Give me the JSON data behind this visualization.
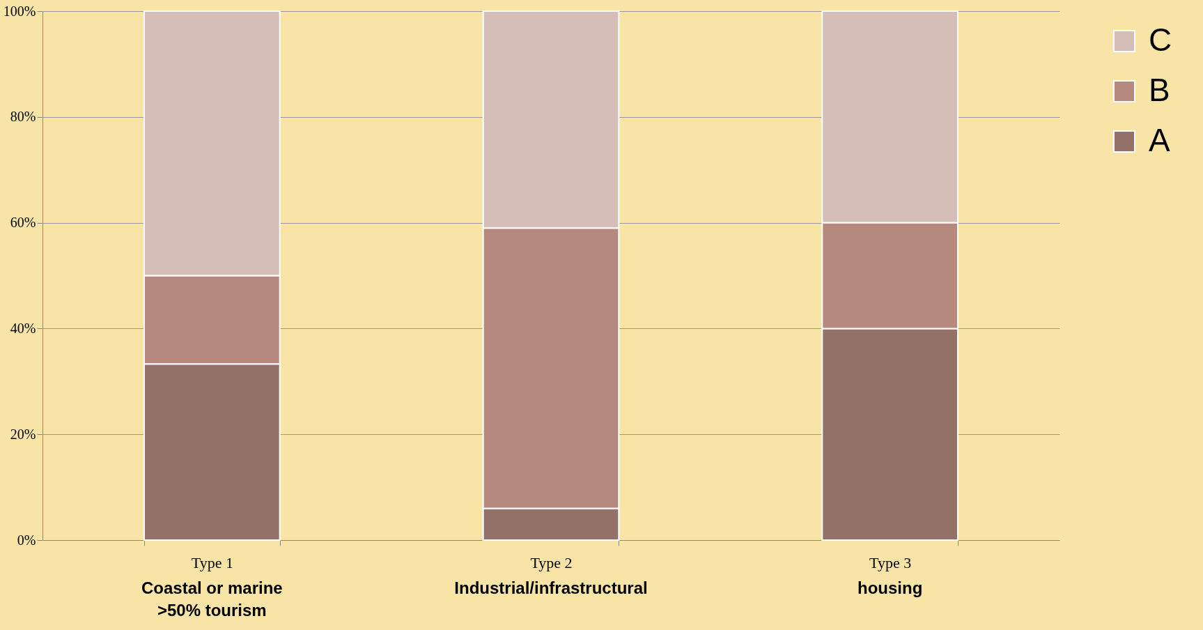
{
  "chart_data": {
    "type": "bar",
    "stacked": true,
    "categories": [
      "Type 1",
      "Type 2",
      "Type 3"
    ],
    "series": [
      {
        "name": "A",
        "color": "#937169",
        "values": [
          33.3,
          6,
          40
        ]
      },
      {
        "name": "B",
        "color": "#b5897e",
        "values": [
          16.7,
          53,
          20
        ]
      },
      {
        "name": "C",
        "color": "#d5bdb8",
        "values": [
          50,
          41,
          40
        ]
      }
    ],
    "ylim": [
      0,
      100
    ],
    "yticks": [
      {
        "value": 0,
        "label": "0%"
      },
      {
        "value": 20,
        "label": "20%"
      },
      {
        "value": 40,
        "label": "40%"
      },
      {
        "value": 60,
        "label": "60%"
      },
      {
        "value": 80,
        "label": "80%"
      },
      {
        "value": 100,
        "label": "100%"
      }
    ],
    "grid": "y",
    "legend": "top right",
    "annotations": [
      "Coastal or marine\n>50% tourism",
      "Industrial/infrastructural",
      "housing"
    ]
  }
}
